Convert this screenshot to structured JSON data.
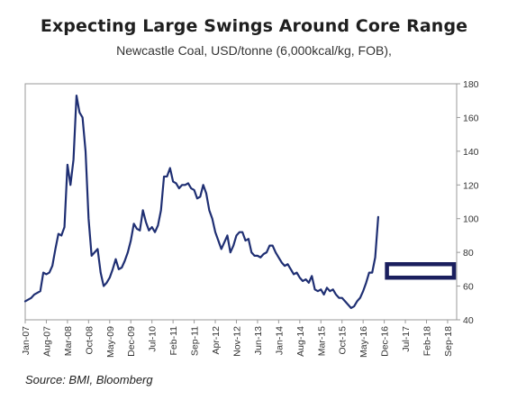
{
  "chart_data": {
    "type": "line",
    "title": "Expecting Large Swings Around Core Range",
    "subtitle": "Newcastle Coal, USD/tonne (6,000kcal/kg, FOB),",
    "source": "Source: BMI, Bloomberg",
    "x_ticks": [
      "Jan-07",
      "Aug-07",
      "Mar-08",
      "Oct-08",
      "May-09",
      "Dec-09",
      "Jul-10",
      "Feb-11",
      "Sep-11",
      "Apr-12",
      "Nov-12",
      "Jun-13",
      "Jan-14",
      "Aug-14",
      "Mar-15",
      "Oct-15",
      "May-16",
      "Dec-16",
      "Jul-17",
      "Feb-18",
      "Sep-18"
    ],
    "y_ticks": [
      "40",
      "60",
      "80",
      "100",
      "120",
      "140",
      "160",
      "180"
    ],
    "ylim": [
      40,
      180
    ],
    "y_axis_position": "right",
    "grid": false,
    "xlim": [
      "2007-01",
      "2018-12"
    ],
    "series": [
      {
        "color": "#1f2f73",
        "points": [
          [
            "2007-01",
            51
          ],
          [
            "2007-02",
            52
          ],
          [
            "2007-03",
            53
          ],
          [
            "2007-04",
            55
          ],
          [
            "2007-05",
            56
          ],
          [
            "2007-06",
            57
          ],
          [
            "2007-07",
            68
          ],
          [
            "2007-08",
            67
          ],
          [
            "2007-09",
            68
          ],
          [
            "2007-10",
            72
          ],
          [
            "2007-11",
            82
          ],
          [
            "2007-12",
            91
          ],
          [
            "2008-01",
            90
          ],
          [
            "2008-02",
            95
          ],
          [
            "2008-03",
            132
          ],
          [
            "2008-04",
            120
          ],
          [
            "2008-05",
            135
          ],
          [
            "2008-06",
            173
          ],
          [
            "2008-07",
            163
          ],
          [
            "2008-08",
            160
          ],
          [
            "2008-09",
            140
          ],
          [
            "2008-10",
            100
          ],
          [
            "2008-11",
            78
          ],
          [
            "2008-12",
            80
          ],
          [
            "2009-01",
            82
          ],
          [
            "2009-02",
            68
          ],
          [
            "2009-03",
            60
          ],
          [
            "2009-04",
            62
          ],
          [
            "2009-05",
            65
          ],
          [
            "2009-06",
            70
          ],
          [
            "2009-07",
            76
          ],
          [
            "2009-08",
            70
          ],
          [
            "2009-09",
            71
          ],
          [
            "2009-10",
            75
          ],
          [
            "2009-11",
            80
          ],
          [
            "2009-12",
            87
          ],
          [
            "2010-01",
            97
          ],
          [
            "2010-02",
            94
          ],
          [
            "2010-03",
            93
          ],
          [
            "2010-04",
            105
          ],
          [
            "2010-05",
            98
          ],
          [
            "2010-06",
            93
          ],
          [
            "2010-07",
            95
          ],
          [
            "2010-08",
            92
          ],
          [
            "2010-09",
            96
          ],
          [
            "2010-10",
            105
          ],
          [
            "2010-11",
            125
          ],
          [
            "2010-12",
            125
          ],
          [
            "2011-01",
            130
          ],
          [
            "2011-02",
            122
          ],
          [
            "2011-03",
            121
          ],
          [
            "2011-04",
            118
          ],
          [
            "2011-05",
            120
          ],
          [
            "2011-06",
            120
          ],
          [
            "2011-07",
            121
          ],
          [
            "2011-08",
            118
          ],
          [
            "2011-09",
            117
          ],
          [
            "2011-10",
            112
          ],
          [
            "2011-11",
            113
          ],
          [
            "2011-12",
            120
          ],
          [
            "2012-01",
            115
          ],
          [
            "2012-02",
            105
          ],
          [
            "2012-03",
            100
          ],
          [
            "2012-04",
            92
          ],
          [
            "2012-05",
            87
          ],
          [
            "2012-06",
            82
          ],
          [
            "2012-07",
            86
          ],
          [
            "2012-08",
            90
          ],
          [
            "2012-09",
            80
          ],
          [
            "2012-10",
            84
          ],
          [
            "2012-11",
            90
          ],
          [
            "2012-12",
            92
          ],
          [
            "2013-01",
            92
          ],
          [
            "2013-02",
            87
          ],
          [
            "2013-03",
            88
          ],
          [
            "2013-04",
            80
          ],
          [
            "2013-05",
            78
          ],
          [
            "2013-06",
            78
          ],
          [
            "2013-07",
            77
          ],
          [
            "2013-08",
            79
          ],
          [
            "2013-09",
            80
          ],
          [
            "2013-10",
            84
          ],
          [
            "2013-11",
            84
          ],
          [
            "2013-12",
            80
          ],
          [
            "2014-01",
            77
          ],
          [
            "2014-02",
            74
          ],
          [
            "2014-03",
            72
          ],
          [
            "2014-04",
            73
          ],
          [
            "2014-05",
            70
          ],
          [
            "2014-06",
            67
          ],
          [
            "2014-07",
            68
          ],
          [
            "2014-08",
            65
          ],
          [
            "2014-09",
            63
          ],
          [
            "2014-10",
            64
          ],
          [
            "2014-11",
            62
          ],
          [
            "2014-12",
            66
          ],
          [
            "2015-01",
            58
          ],
          [
            "2015-02",
            57
          ],
          [
            "2015-03",
            58
          ],
          [
            "2015-04",
            55
          ],
          [
            "2015-05",
            59
          ],
          [
            "2015-06",
            57
          ],
          [
            "2015-07",
            58
          ],
          [
            "2015-08",
            55
          ],
          [
            "2015-09",
            53
          ],
          [
            "2015-10",
            53
          ],
          [
            "2015-11",
            51
          ],
          [
            "2015-12",
            49
          ],
          [
            "2016-01",
            47
          ],
          [
            "2016-02",
            48
          ],
          [
            "2016-03",
            51
          ],
          [
            "2016-04",
            53
          ],
          [
            "2016-05",
            57
          ],
          [
            "2016-06",
            62
          ],
          [
            "2016-07",
            68
          ],
          [
            "2016-08",
            68
          ],
          [
            "2016-09",
            77
          ],
          [
            "2016-10",
            101
          ]
        ]
      }
    ],
    "annotation_box": {
      "x_start": "2016-12",
      "x_end": "2018-12",
      "y_low": 65,
      "y_high": 73,
      "color": "#1a1f5e"
    }
  }
}
